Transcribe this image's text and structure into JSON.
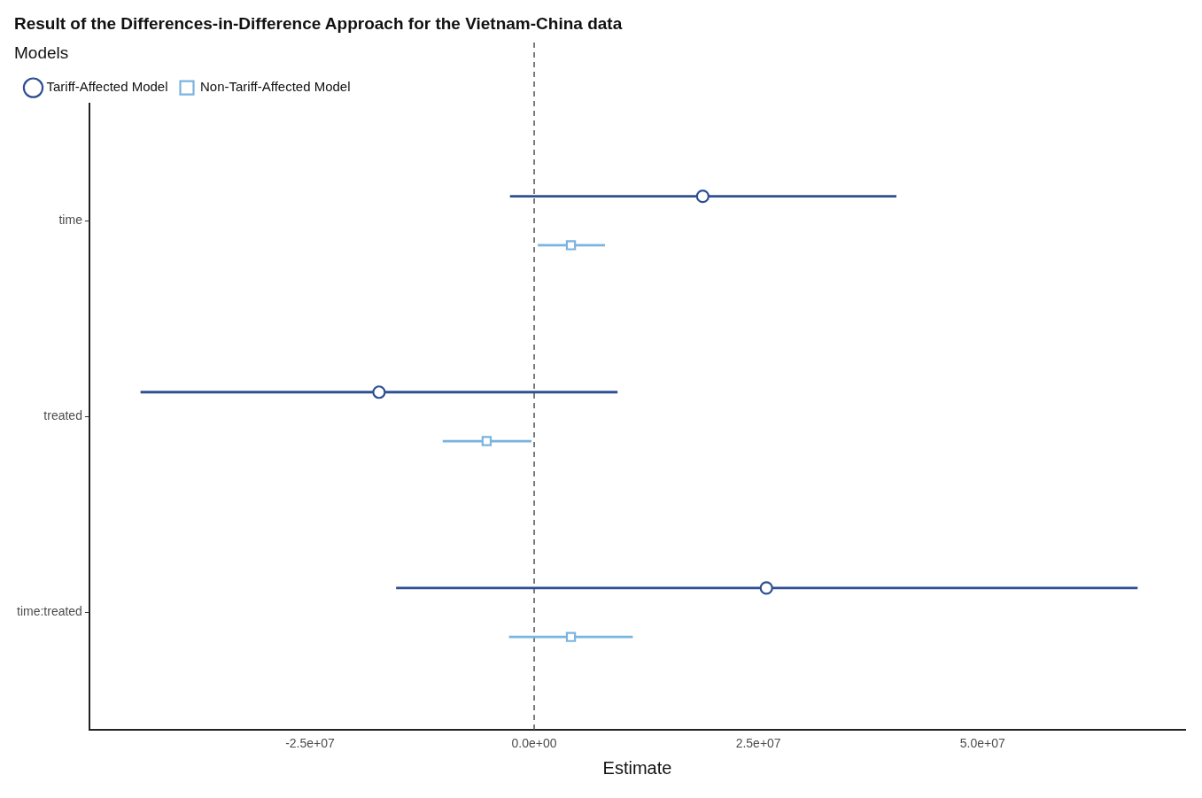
{
  "chart_data": {
    "type": "scatter",
    "orientation": "horizontal",
    "title": "Result of the Differences-in-Difference Approach for the Vietnam-China data",
    "xlabel": "Estimate",
    "legend_title": "Models",
    "legend": "top left",
    "grid": false,
    "categories": [
      "time",
      "treated",
      "time:treated"
    ],
    "xlim": [
      -49600000,
      72600000
    ],
    "xticks": [
      {
        "value": -25000000,
        "label": "-2.5e+07"
      },
      {
        "value": 0,
        "label": "0.0e+00"
      },
      {
        "value": 25000000,
        "label": "2.5e+07"
      },
      {
        "value": 50000000,
        "label": "5.0e+07"
      }
    ],
    "ref_lines": [
      {
        "axis": "x",
        "value": 0,
        "color": "#555555",
        "line_style": "dashed"
      }
    ],
    "series": [
      {
        "name": "Tariff-Affected Model",
        "color": "#2f4f93",
        "marker": "circle",
        "values": [
          18800000,
          -17300000,
          25900000
        ],
        "errors": [
          [
            -2700000,
            40400000
          ],
          [
            -43900000,
            9300000
          ],
          [
            -15400000,
            67300000
          ]
        ]
      },
      {
        "name": "Non-Tariff-Affected Model",
        "color": "#7bb3df",
        "marker": "square",
        "values": [
          4100000,
          -5300000,
          4100000
        ],
        "errors": [
          [
            400000,
            7900000
          ],
          [
            -10200000,
            -300000
          ],
          [
            -2800000,
            11000000
          ]
        ]
      }
    ]
  }
}
